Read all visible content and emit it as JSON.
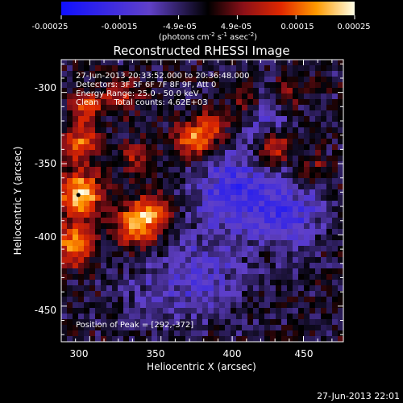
{
  "chart_data": {
    "type": "heatmap",
    "title": "Reconstructed RHESSI Image",
    "xlabel": "Heliocentric X (arcsec)",
    "ylabel": "Heliocentric Y (arcsec)",
    "xlim": [
      280,
      478
    ],
    "ylim": [
      -475,
      -277
    ],
    "xticks": [
      300,
      350,
      400,
      450
    ],
    "yticks": [
      -300,
      -350,
      -400,
      -450
    ],
    "grid": false,
    "colorbar": {
      "range": [
        -0.00025,
        0.00025
      ],
      "ticks": [
        "-0.00025",
        "-0.00015",
        "-4.9e-05",
        "4.9e-05",
        "0.00015",
        "0.00025"
      ],
      "unit_label_main": "(photons cm",
      "unit_sup1": "-2",
      "unit_mid": " s",
      "unit_sup2": "-1",
      "unit_mid2": " asec",
      "unit_sup3": "-2",
      "unit_end": ")"
    },
    "annotations": [
      "27-Jun-2013 20:33:52.000 to 20:36:48.000",
      "Detectors: 3F 5F 6F 7F 8F 9F, Att 0",
      "Energy Range: 25.0 - 50.0 keV",
      "Clean      Total counts: 4.62E+03"
    ],
    "peak_label": "Position of Peak = [292,-372]",
    "peak": [
      292,
      -372
    ],
    "sources": [
      {
        "x": 293,
        "y": -372,
        "amp": 1.0,
        "s": 11
      },
      {
        "x": 289,
        "y": -407,
        "amp": 0.85,
        "s": 10
      },
      {
        "x": 333,
        "y": -393,
        "amp": 0.85,
        "s": 10
      },
      {
        "x": 348,
        "y": -383,
        "amp": 0.6,
        "s": 9
      },
      {
        "x": 373,
        "y": -333,
        "amp": 0.75,
        "s": 9
      },
      {
        "x": 388,
        "y": -323,
        "amp": 0.5,
        "s": 8
      },
      {
        "x": 429,
        "y": -340,
        "amp": 0.7,
        "s": 8
      },
      {
        "x": 298,
        "y": -310,
        "amp": 0.6,
        "s": 8
      },
      {
        "x": 293,
        "y": -336,
        "amp": 0.65,
        "s": 9
      },
      {
        "x": 323,
        "y": -302,
        "amp": 0.45,
        "s": 8
      },
      {
        "x": 333,
        "y": -346,
        "amp": 0.4,
        "s": 8
      },
      {
        "x": 408,
        "y": -307,
        "amp": 0.4,
        "s": 7
      },
      {
        "x": 438,
        "y": -300,
        "amp": 0.35,
        "s": 7
      },
      {
        "x": 458,
        "y": -356,
        "amp": 0.3,
        "s": 8
      },
      {
        "x": 400,
        "y": -370,
        "amp": -0.55,
        "s": 20
      },
      {
        "x": 440,
        "y": -385,
        "amp": -0.45,
        "s": 18
      },
      {
        "x": 380,
        "y": -430,
        "amp": -0.35,
        "s": 20
      },
      {
        "x": 420,
        "y": -320,
        "amp": -0.3,
        "s": 14
      },
      {
        "x": 340,
        "y": -440,
        "amp": -0.2,
        "s": 18
      }
    ]
  },
  "footer": {
    "timestamp": "27-Jun-2013 22:01"
  }
}
